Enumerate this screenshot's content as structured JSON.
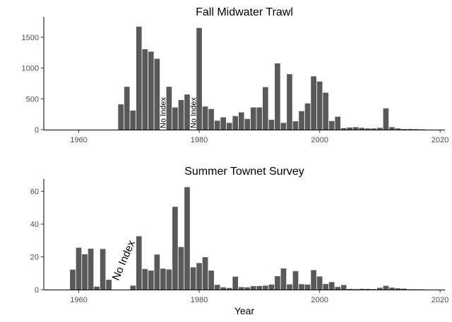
{
  "chart_data": [
    {
      "type": "bar",
      "title": "Fall Midwater Trawl",
      "xlabel": "",
      "ylabel": "",
      "xlim": [
        1954.2,
        2020.8
      ],
      "ylim": [
        0,
        1760
      ],
      "xticks": [
        1960,
        1980,
        2000,
        2020
      ],
      "yticks": [
        0,
        500,
        1000,
        1500
      ],
      "xtick_labels": [
        "1960",
        "1980",
        "2000",
        "2020"
      ],
      "ytick_labels": [
        "0",
        "500",
        "1000",
        "1500"
      ],
      "grid": false,
      "annotations": [
        {
          "text": "No Index",
          "x": 1974,
          "rotation": -90
        },
        {
          "text": "No Index",
          "x": 1979,
          "rotation": -90
        }
      ],
      "x": [
        1967,
        1968,
        1969,
        1970,
        1971,
        1972,
        1973,
        1975,
        1976,
        1977,
        1978,
        1980,
        1981,
        1982,
        1983,
        1984,
        1985,
        1986,
        1987,
        1988,
        1989,
        1990,
        1991,
        1992,
        1993,
        1994,
        1995,
        1996,
        1997,
        1998,
        1999,
        2000,
        2001,
        2002,
        2003,
        2004,
        2005,
        2006,
        2007,
        2008,
        2009,
        2010,
        2011,
        2012,
        2013,
        2014,
        2015,
        2016,
        2017
      ],
      "values": [
        410,
        695,
        310,
        1670,
        1305,
        1265,
        1150,
        695,
        360,
        480,
        570,
        1650,
        375,
        335,
        145,
        200,
        110,
        220,
        280,
        175,
        360,
        360,
        690,
        160,
        1075,
        110,
        900,
        135,
        300,
        425,
        865,
        780,
        600,
        140,
        210,
        25,
        35,
        40,
        30,
        20,
        20,
        30,
        345,
        40,
        20,
        10,
        10,
        8,
        5
      ]
    },
    {
      "type": "bar",
      "title": "Summer Townet Survey",
      "xlabel": "Year",
      "ylabel": "",
      "xlim": [
        1954.2,
        2020.8
      ],
      "ylim": [
        0,
        65
      ],
      "xticks": [
        1960,
        1980,
        2000,
        2020
      ],
      "yticks": [
        0,
        20,
        40,
        60
      ],
      "xtick_labels": [
        "1960",
        "1980",
        "2000",
        "2020"
      ],
      "ytick_labels": [
        "0",
        "20",
        "40",
        "60"
      ],
      "grid": false,
      "annotations": [
        {
          "text": "No Index",
          "x": 1966.6,
          "rotation": -67
        }
      ],
      "x": [
        1959,
        1960,
        1961,
        1962,
        1963,
        1964,
        1965,
        1969,
        1970,
        1971,
        1972,
        1973,
        1974,
        1975,
        1976,
        1977,
        1978,
        1979,
        1980,
        1981,
        1982,
        1983,
        1984,
        1985,
        1986,
        1987,
        1988,
        1989,
        1990,
        1991,
        1992,
        1993,
        1994,
        1995,
        1996,
        1997,
        1998,
        1999,
        2000,
        2001,
        2002,
        2003,
        2004,
        2005,
        2006,
        2007,
        2008,
        2009,
        2010,
        2011,
        2012,
        2013,
        2014,
        2015,
        2016,
        2017
      ],
      "values": [
        12.2,
        25.6,
        21.6,
        25,
        1.8,
        24.8,
        6,
        2.4,
        32.6,
        12.6,
        11.6,
        21.4,
        12.8,
        12.3,
        50.6,
        26,
        62.6,
        13.6,
        16.2,
        19.8,
        11.6,
        2.9,
        1.4,
        1,
        7.9,
        1.5,
        1.4,
        2.1,
        2.2,
        2.4,
        3.1,
        8.2,
        12.9,
        3.2,
        11.3,
        3.3,
        3.1,
        11.9,
        8,
        3.4,
        4.6,
        1.6,
        2.8,
        0.4,
        0.3,
        0.5,
        0.4,
        0.3,
        1.1,
        2.3,
        1.2,
        0.8,
        0.6,
        0.2,
        0.2,
        0.15
      ]
    }
  ]
}
